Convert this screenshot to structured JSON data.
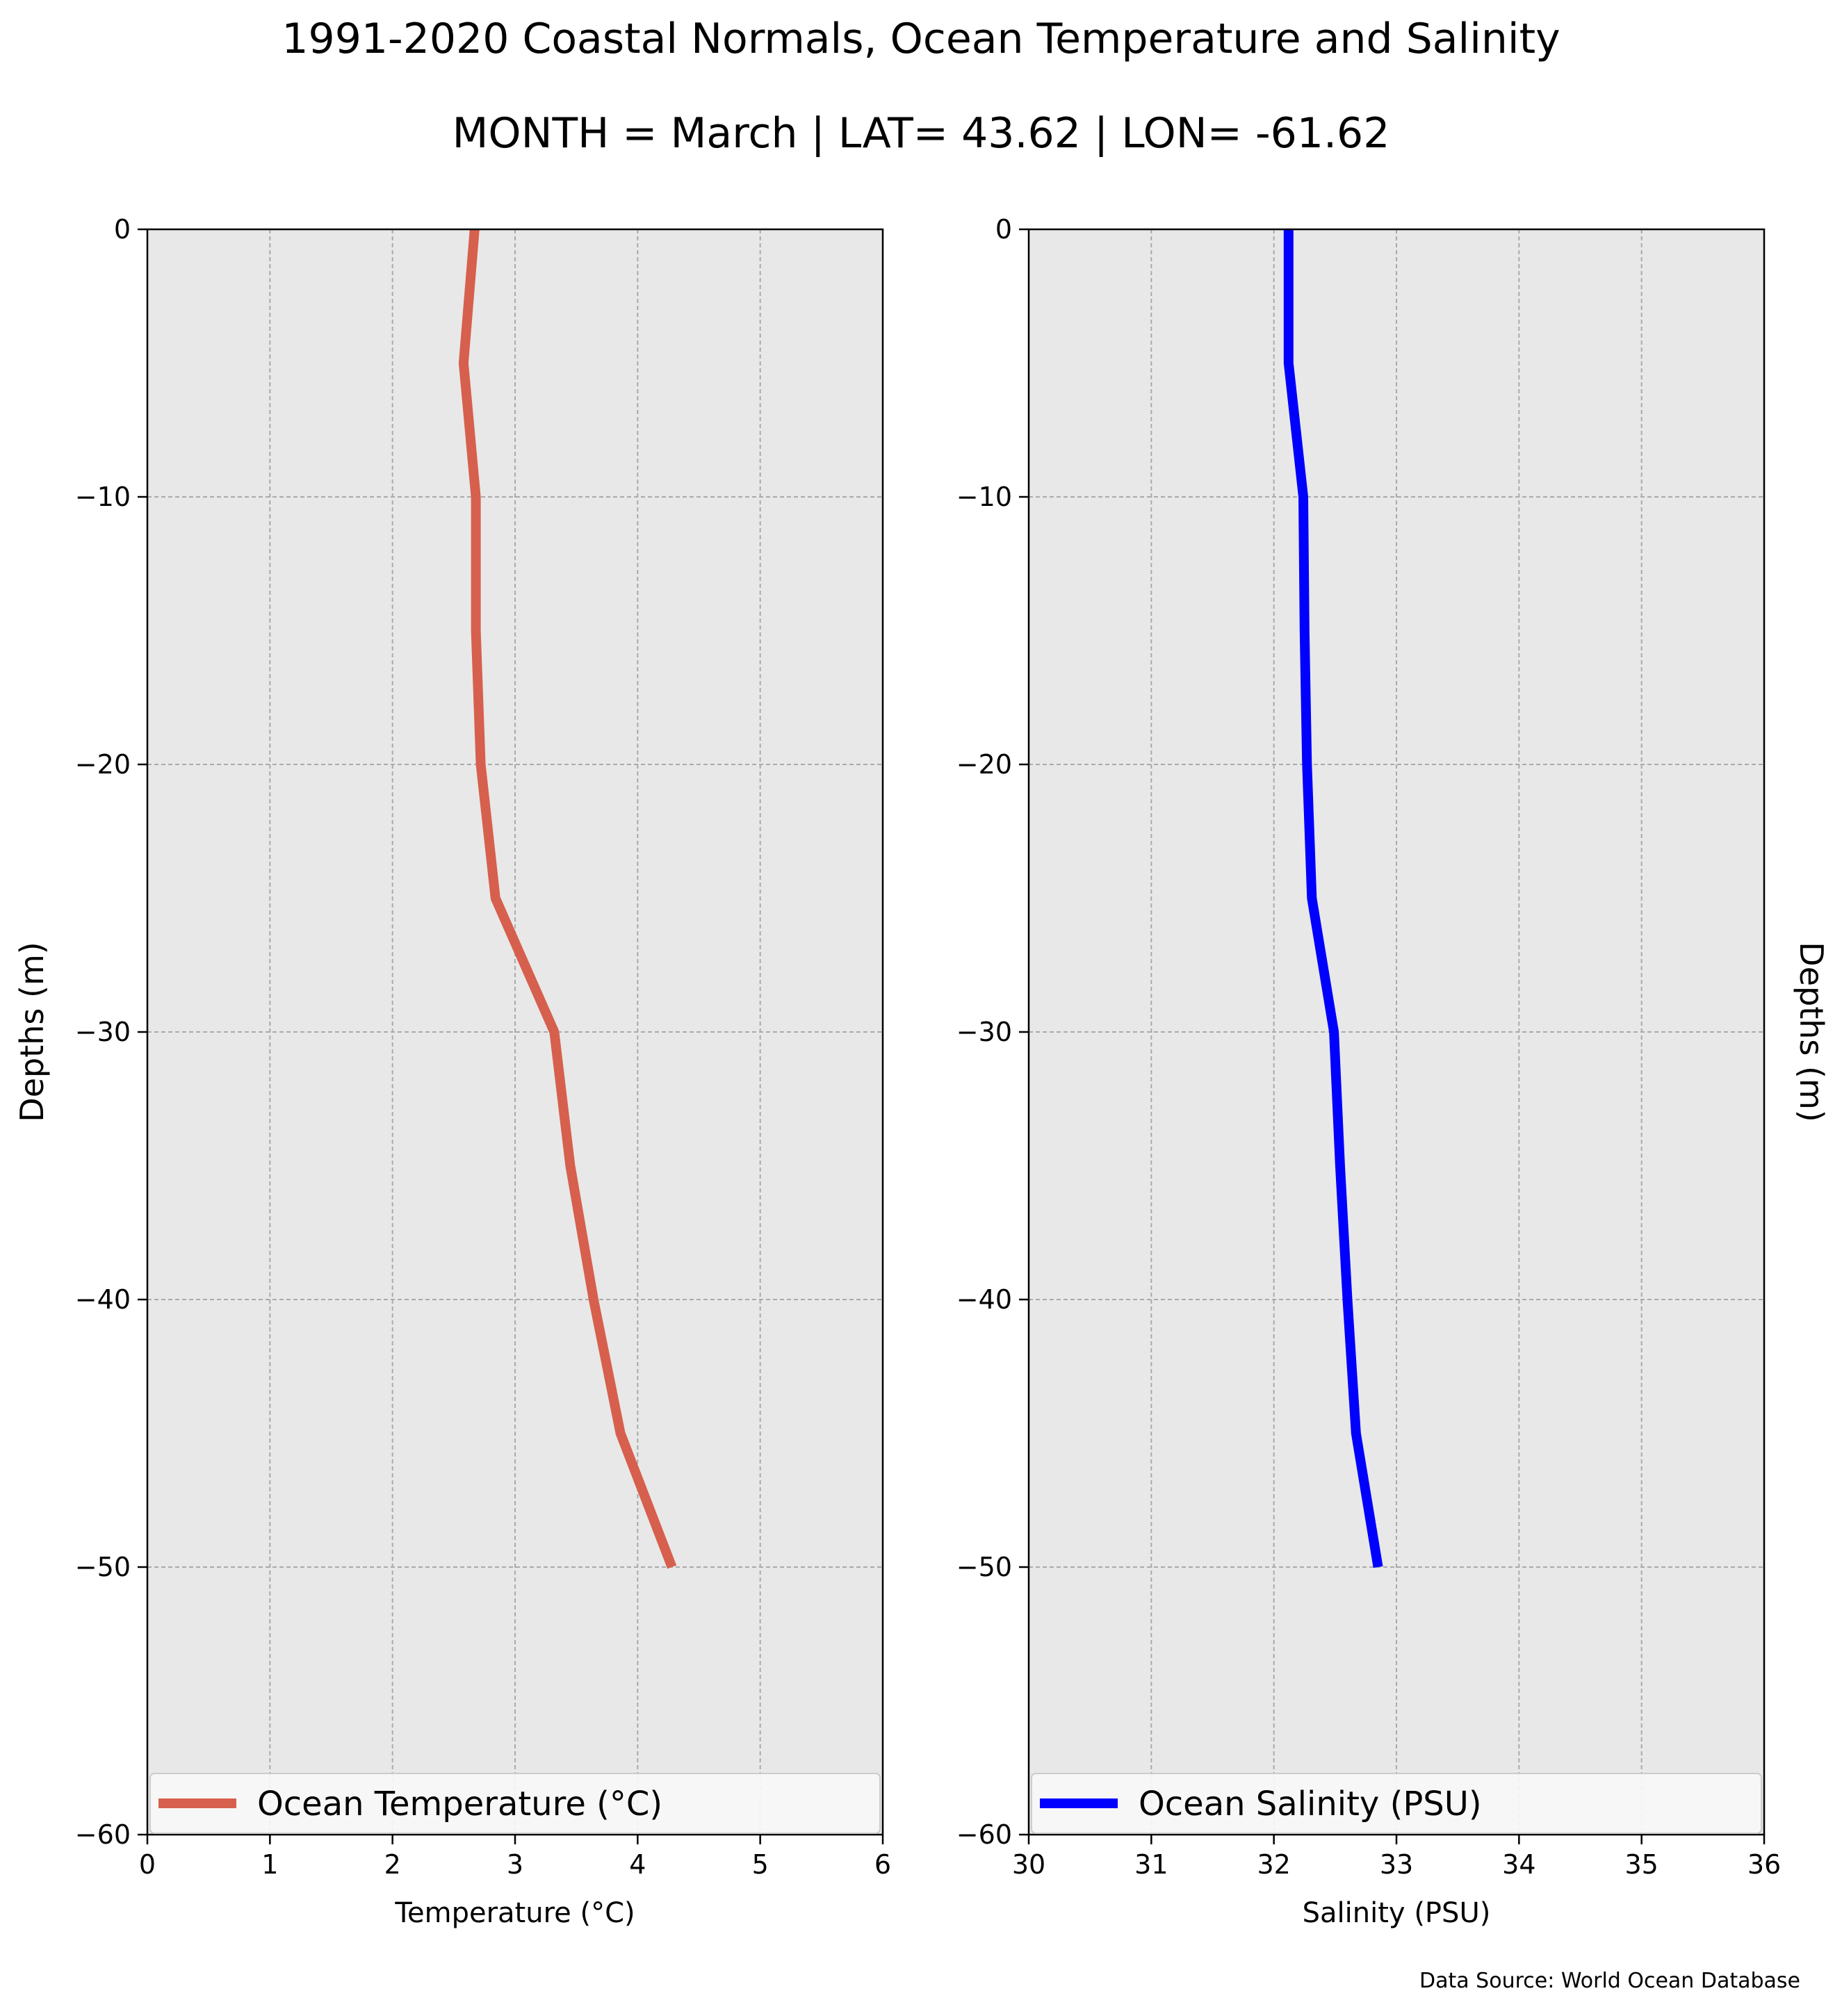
{
  "title": "1991-2020 Coastal Normals, Ocean Temperature and Salinity",
  "subtitle": "MONTH = March | LAT= 43.62 | LON= -61.62",
  "source": "Data Source: World Ocean Database",
  "chart_data": [
    {
      "type": "line",
      "xlabel": "Temperature (°C)",
      "ylabel": "Depths (m)",
      "xlim": [
        0,
        6
      ],
      "ylim": [
        -60,
        0
      ],
      "xticks": [
        "0",
        "1",
        "2",
        "3",
        "4",
        "5",
        "6"
      ],
      "yticks": [
        "0",
        "−10",
        "−20",
        "−30",
        "−40",
        "−50",
        "−60"
      ],
      "grid": true,
      "legend_position": "bottom",
      "series": [
        {
          "name": "Ocean Temperature (°C)",
          "color": "#d6604d",
          "x": [
            2.67,
            2.58,
            2.68,
            2.68,
            2.72,
            2.84,
            3.32,
            3.45,
            3.64,
            3.86,
            4.28
          ],
          "y": [
            0,
            -5,
            -10,
            -15,
            -20,
            -25,
            -30,
            -35,
            -40,
            -45,
            -50
          ]
        }
      ]
    },
    {
      "type": "line",
      "xlabel": "Salinity (PSU)",
      "ylabel": "Depths (m)",
      "xlim": [
        30,
        36
      ],
      "ylim": [
        -60,
        0
      ],
      "xticks": [
        "30",
        "31",
        "32",
        "33",
        "34",
        "35",
        "36"
      ],
      "yticks": [
        "0",
        "−10",
        "−20",
        "−30",
        "−40",
        "−50",
        "−60"
      ],
      "grid": true,
      "legend_position": "bottom",
      "series": [
        {
          "name": "Ocean Salinity (PSU)",
          "color": "#0000ff",
          "x": [
            32.12,
            32.12,
            32.24,
            32.25,
            32.27,
            32.31,
            32.49,
            32.54,
            32.6,
            32.67,
            32.85
          ],
          "y": [
            0,
            -5,
            -10,
            -15,
            -20,
            -25,
            -30,
            -35,
            -40,
            -45,
            -50
          ]
        }
      ]
    }
  ]
}
